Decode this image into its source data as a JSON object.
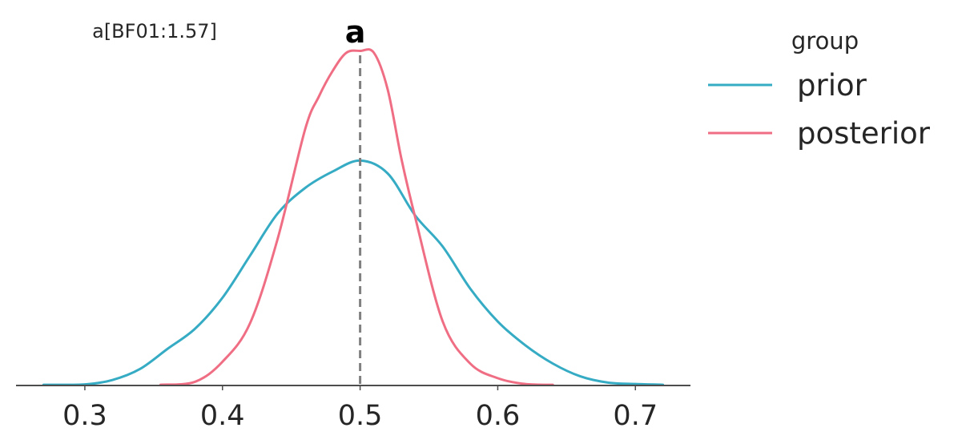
{
  "chart_data": {
    "type": "line",
    "title": "a",
    "annotation": "a[BF01:1.57]",
    "xlabel": "",
    "ylabel": "",
    "xlim": [
      0.25,
      0.74
    ],
    "ylim": [
      0,
      9.6
    ],
    "x_ticks": [
      0.3,
      0.4,
      0.5,
      0.6,
      0.7
    ],
    "x_tick_labels": [
      "0.3",
      "0.4",
      "0.5",
      "0.6",
      "0.7"
    ],
    "y_ticks_shown": false,
    "grid": false,
    "reference_line": {
      "x": 0.5,
      "style": "dashed",
      "color": "#808080"
    },
    "legend": {
      "title": "group",
      "position": "right",
      "entries": [
        "prior",
        "posterior"
      ]
    },
    "series": [
      {
        "name": "prior",
        "color": "#36abc4",
        "x": [
          0.27,
          0.3,
          0.32,
          0.34,
          0.36,
          0.38,
          0.4,
          0.42,
          0.44,
          0.46,
          0.48,
          0.5,
          0.52,
          0.54,
          0.56,
          0.58,
          0.6,
          0.62,
          0.64,
          0.66,
          0.68,
          0.7,
          0.72
        ],
        "y": [
          0.02,
          0.03,
          0.15,
          0.45,
          1.0,
          1.55,
          2.4,
          3.55,
          4.7,
          5.4,
          5.85,
          6.15,
          5.8,
          4.65,
          3.8,
          2.65,
          1.75,
          1.1,
          0.6,
          0.25,
          0.08,
          0.04,
          0.02
        ]
      },
      {
        "name": "posterior",
        "color": "#f06e84",
        "x": [
          0.355,
          0.38,
          0.4,
          0.42,
          0.44,
          0.46,
          0.47,
          0.48,
          0.49,
          0.5,
          0.51,
          0.52,
          0.53,
          0.54,
          0.56,
          0.58,
          0.6,
          0.62,
          0.64
        ],
        "y": [
          0.02,
          0.1,
          0.65,
          1.7,
          4.0,
          7.0,
          7.9,
          8.6,
          9.1,
          9.15,
          9.1,
          8.1,
          6.2,
          4.6,
          1.75,
          0.6,
          0.2,
          0.04,
          0.02
        ]
      }
    ]
  }
}
